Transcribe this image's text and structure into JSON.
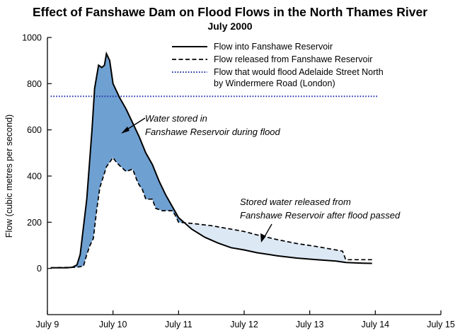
{
  "chart_data": {
    "type": "line",
    "title": "Effect of Fanshawe Dam on Flood Flows in the North Thames River",
    "subtitle": "July 2000",
    "ylabel": "Flow (cubic metres per second)",
    "xlabel": "",
    "xlim": [
      9,
      15
    ],
    "ylim": [
      -200,
      1000
    ],
    "x_ticks": [
      {
        "value": 9,
        "label": "July 9"
      },
      {
        "value": 10,
        "label": "July 10"
      },
      {
        "value": 11,
        "label": "July 11"
      },
      {
        "value": 12,
        "label": "July 12"
      },
      {
        "value": 13,
        "label": "July 13"
      },
      {
        "value": 14,
        "label": "July 14"
      },
      {
        "value": 15,
        "label": "July 15"
      }
    ],
    "y_ticks": [
      0,
      200,
      400,
      600,
      800,
      1000
    ],
    "grid": false,
    "legend_position": "top-right",
    "colors": {
      "inflow": "#000000",
      "outflow": "#000000",
      "flood_threshold": "#2233aa",
      "stored_fill": "#6fa0d2",
      "released_fill": "#dce8f4"
    },
    "series": [
      {
        "name": "Flow into Fanshawe Reservoir",
        "style": "solid",
        "x": [
          9.05,
          9.3,
          9.38,
          9.45,
          9.5,
          9.6,
          9.68,
          9.72,
          9.78,
          9.83,
          9.87,
          9.9,
          9.95,
          10.0,
          10.1,
          10.2,
          10.3,
          10.4,
          10.5,
          10.6,
          10.7,
          10.8,
          10.9,
          11.0,
          11.2,
          11.4,
          11.6,
          11.8,
          12.0,
          12.2,
          12.5,
          12.8,
          13.1,
          13.4,
          13.55,
          13.8,
          13.95
        ],
        "values": [
          3,
          3,
          5,
          15,
          60,
          300,
          600,
          780,
          880,
          870,
          880,
          930,
          900,
          800,
          740,
          690,
          630,
          570,
          500,
          450,
          380,
          320,
          270,
          220,
          170,
          135,
          110,
          90,
          80,
          68,
          55,
          45,
          38,
          32,
          26,
          23,
          22
        ]
      },
      {
        "name": "Flow released from Fanshawe Reservoir",
        "style": "dashed",
        "x": [
          9.05,
          9.45,
          9.55,
          9.6,
          9.65,
          9.7,
          9.75,
          9.8,
          9.9,
          10.0,
          10.05,
          10.12,
          10.2,
          10.3,
          10.38,
          10.45,
          10.5,
          10.6,
          10.65,
          10.75,
          10.85,
          10.9,
          10.95,
          11.0,
          11.2,
          11.5,
          11.8,
          12.0,
          12.2,
          12.5,
          12.8,
          13.1,
          13.3,
          13.5,
          13.55,
          13.95
        ],
        "values": [
          3,
          5,
          10,
          60,
          100,
          130,
          250,
          350,
          440,
          480,
          460,
          440,
          420,
          430,
          370,
          340,
          300,
          300,
          260,
          250,
          250,
          250,
          230,
          200,
          195,
          185,
          170,
          160,
          145,
          125,
          108,
          95,
          85,
          75,
          38,
          38
        ]
      },
      {
        "name": "Flow that would flood Adelaide Street North by Windermere Road (London)",
        "style": "dotted",
        "x": [
          9.05,
          14.05
        ],
        "values": [
          745,
          745
        ]
      }
    ],
    "annotations": [
      {
        "lines": [
          "Water stored in",
          "Fanshawe Reservoir during flood"
        ]
      },
      {
        "lines": [
          "Stored water released from",
          "Fanshawe Reservoir after flood passed"
        ]
      }
    ]
  }
}
